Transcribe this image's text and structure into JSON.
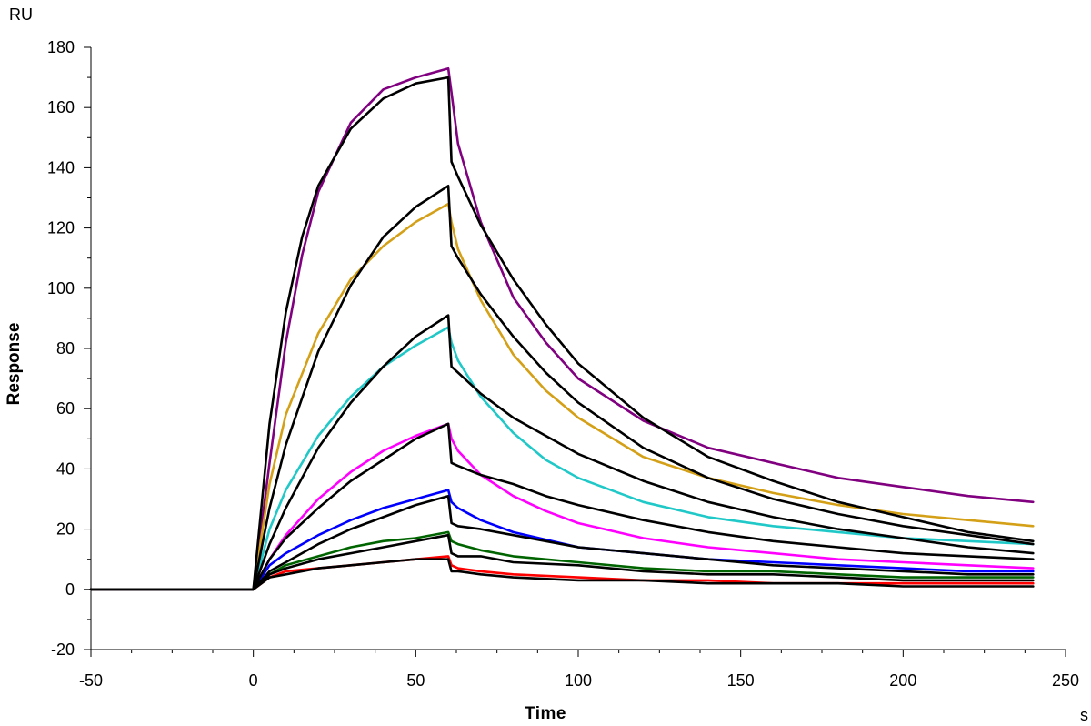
{
  "chart_data": {
    "type": "line",
    "title": "",
    "xlabel": "Time",
    "ylabel": "Response",
    "x_unit": "s",
    "y_unit": "RU",
    "xlim": [
      -50,
      250
    ],
    "ylim": [
      -20,
      180
    ],
    "x_ticks": [
      -50,
      0,
      50,
      100,
      150,
      200,
      250
    ],
    "y_ticks": [
      -20,
      0,
      20,
      40,
      60,
      80,
      100,
      120,
      140,
      160,
      180
    ],
    "grid": false,
    "legend": "none",
    "series": [
      {
        "role": "data",
        "color": "#800080",
        "x": [
          -50,
          0,
          5,
          10,
          15,
          20,
          30,
          40,
          50,
          60,
          61,
          63,
          70,
          80,
          90,
          100,
          120,
          140,
          160,
          180,
          200,
          220,
          240
        ],
        "y": [
          0,
          0,
          42,
          82,
          111,
          132,
          155,
          166,
          170,
          173,
          165,
          148,
          122,
          97,
          82,
          70,
          56,
          47,
          42,
          37,
          34,
          31,
          29
        ]
      },
      {
        "role": "data",
        "color": "#D4A017",
        "x": [
          -50,
          0,
          5,
          10,
          20,
          30,
          40,
          50,
          60,
          61,
          63,
          70,
          80,
          90,
          100,
          120,
          140,
          160,
          180,
          200,
          220,
          240
        ],
        "y": [
          0,
          0,
          35,
          58,
          85,
          103,
          114,
          122,
          128,
          122,
          113,
          96,
          78,
          66,
          57,
          44,
          37,
          32,
          28,
          25,
          23,
          21
        ]
      },
      {
        "role": "data",
        "color": "#20C8C8",
        "x": [
          -50,
          0,
          5,
          10,
          20,
          30,
          40,
          50,
          60,
          61,
          63,
          70,
          80,
          90,
          100,
          120,
          140,
          160,
          180,
          200,
          220,
          240
        ],
        "y": [
          0,
          0,
          20,
          33,
          51,
          64,
          74,
          81,
          87,
          82,
          76,
          64,
          52,
          43,
          37,
          29,
          24,
          21,
          19,
          17,
          16,
          15
        ]
      },
      {
        "role": "data",
        "color": "#FF00FF",
        "x": [
          -50,
          0,
          5,
          10,
          20,
          30,
          40,
          50,
          60,
          61,
          63,
          70,
          80,
          90,
          100,
          120,
          140,
          160,
          180,
          200,
          220,
          240
        ],
        "y": [
          0,
          0,
          10,
          18,
          30,
          39,
          46,
          51,
          55,
          50,
          46,
          38,
          31,
          26,
          22,
          17,
          14,
          12,
          10,
          9,
          8,
          7
        ]
      },
      {
        "role": "data",
        "color": "#0000FF",
        "x": [
          -50,
          0,
          5,
          10,
          20,
          30,
          40,
          50,
          60,
          61,
          63,
          70,
          80,
          100,
          120,
          140,
          160,
          180,
          200,
          220,
          240
        ],
        "y": [
          0,
          0,
          8,
          12,
          18,
          23,
          27,
          30,
          33,
          29,
          27,
          23,
          19,
          14,
          12,
          10,
          9,
          8,
          7,
          6,
          6
        ]
      },
      {
        "role": "data",
        "color": "#006400",
        "x": [
          -50,
          0,
          5,
          10,
          20,
          30,
          40,
          50,
          60,
          61,
          63,
          70,
          80,
          100,
          120,
          140,
          160,
          180,
          200,
          220,
          240
        ],
        "y": [
          0,
          0,
          5,
          8,
          11,
          14,
          16,
          17,
          19,
          16,
          15,
          13,
          11,
          9,
          7,
          6,
          6,
          5,
          4,
          4,
          4
        ]
      },
      {
        "role": "data",
        "color": "#FF0000",
        "x": [
          -50,
          0,
          5,
          10,
          20,
          30,
          40,
          50,
          60,
          61,
          63,
          70,
          80,
          100,
          120,
          140,
          160,
          180,
          200,
          220,
          240
        ],
        "y": [
          0,
          0,
          4,
          6,
          7,
          8,
          9,
          10,
          11,
          8,
          7,
          6,
          5,
          4,
          3,
          3,
          2,
          2,
          2,
          2,
          2
        ]
      },
      {
        "role": "fit",
        "color": "#000000",
        "x": [
          -50,
          0,
          5,
          10,
          15,
          20,
          30,
          40,
          50,
          60,
          61,
          63,
          70,
          80,
          90,
          100,
          120,
          140,
          160,
          180,
          200,
          220,
          240
        ],
        "y": [
          0,
          0,
          55,
          92,
          117,
          134,
          153,
          163,
          168,
          170,
          142,
          137,
          121,
          103,
          88,
          75,
          57,
          44,
          36,
          29,
          24,
          19,
          16
        ]
      },
      {
        "role": "fit",
        "color": "#000000",
        "x": [
          -50,
          0,
          5,
          10,
          20,
          30,
          40,
          50,
          60,
          61,
          63,
          70,
          80,
          90,
          100,
          120,
          140,
          160,
          180,
          200,
          220,
          240
        ],
        "y": [
          0,
          0,
          27,
          48,
          79,
          101,
          117,
          127,
          134,
          114,
          110,
          98,
          84,
          72,
          62,
          47,
          37,
          30,
          25,
          21,
          18,
          15
        ]
      },
      {
        "role": "fit",
        "color": "#000000",
        "x": [
          -50,
          0,
          5,
          10,
          20,
          30,
          40,
          50,
          60,
          61,
          63,
          70,
          80,
          90,
          100,
          120,
          140,
          160,
          180,
          200,
          220,
          240
        ],
        "y": [
          0,
          0,
          15,
          27,
          47,
          62,
          74,
          84,
          91,
          74,
          72,
          65,
          57,
          51,
          45,
          36,
          29,
          24,
          20,
          17,
          14,
          12
        ]
      },
      {
        "role": "fit",
        "color": "#000000",
        "x": [
          -50,
          0,
          5,
          10,
          20,
          30,
          40,
          50,
          60,
          61,
          63,
          70,
          80,
          90,
          100,
          120,
          140,
          160,
          180,
          200,
          220,
          240
        ],
        "y": [
          0,
          0,
          10,
          17,
          27,
          36,
          43,
          50,
          55,
          42,
          41,
          38,
          35,
          31,
          28,
          23,
          19,
          16,
          14,
          12,
          11,
          10
        ]
      },
      {
        "role": "fit",
        "color": "#000000",
        "x": [
          -50,
          0,
          5,
          10,
          20,
          30,
          40,
          50,
          60,
          61,
          63,
          70,
          80,
          100,
          120,
          140,
          160,
          180,
          200,
          220,
          240
        ],
        "y": [
          0,
          0,
          6,
          9,
          15,
          20,
          24,
          28,
          31,
          22,
          21,
          20,
          18,
          14,
          12,
          10,
          8,
          7,
          6,
          5,
          5
        ]
      },
      {
        "role": "fit",
        "color": "#000000",
        "x": [
          -50,
          0,
          5,
          10,
          20,
          30,
          40,
          50,
          60,
          61,
          63,
          70,
          80,
          100,
          120,
          140,
          160,
          180,
          200,
          220,
          240
        ],
        "y": [
          0,
          0,
          5,
          7,
          10,
          12,
          14,
          16,
          18,
          12,
          11,
          11,
          9,
          8,
          6,
          5,
          5,
          4,
          3,
          3,
          3
        ]
      },
      {
        "role": "fit",
        "color": "#000000",
        "x": [
          -50,
          0,
          5,
          10,
          20,
          30,
          40,
          50,
          60,
          61,
          63,
          70,
          80,
          100,
          120,
          140,
          160,
          180,
          200,
          220,
          240
        ],
        "y": [
          0,
          0,
          4,
          5,
          7,
          8,
          9,
          10,
          10,
          6,
          6,
          5,
          4,
          3,
          3,
          2,
          2,
          2,
          1,
          1,
          1
        ]
      }
    ]
  }
}
